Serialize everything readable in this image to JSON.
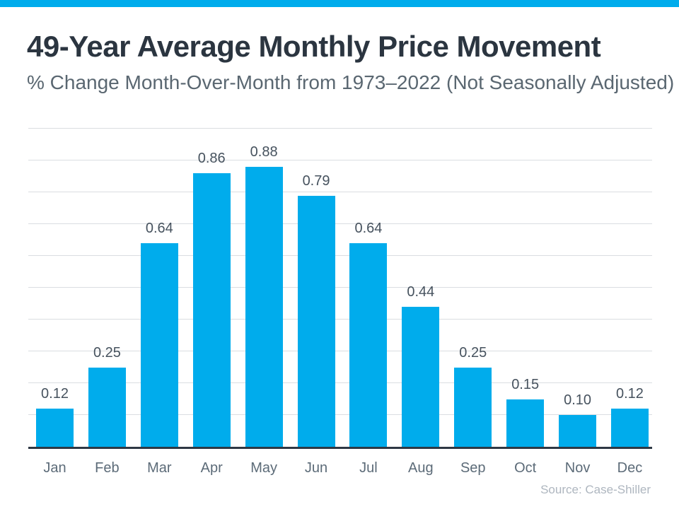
{
  "page": {
    "title": "49-Year Average Monthly Price Movement",
    "subtitle": "% Change Month-Over-Month from 1973–2022 (Not Seasonally Adjusted)",
    "source": "Source: Case-Shiller"
  },
  "colors": {
    "accent": "#00ACEC",
    "title": "#2B3540",
    "subtitle": "#5A6771",
    "data_label": "#46525E",
    "month_label": "#5C6B78",
    "gridline": "#DADDE1",
    "axis": "#2E3844",
    "source": "#AEB6BF"
  },
  "chart_data": {
    "type": "bar",
    "title": "49-Year Average Monthly Price Movement",
    "subtitle": "% Change Month-Over-Month from 1973–2022 (Not Seasonally Adjusted)",
    "categories": [
      "Jan",
      "Feb",
      "Mar",
      "Apr",
      "May",
      "Jun",
      "Jul",
      "Aug",
      "Sep",
      "Oct",
      "Nov",
      "Dec"
    ],
    "values": [
      0.12,
      0.25,
      0.64,
      0.86,
      0.88,
      0.79,
      0.64,
      0.44,
      0.25,
      0.15,
      0.1,
      0.12
    ],
    "value_labels": [
      "0.12",
      "0.25",
      "0.64",
      "0.86",
      "0.88",
      "0.79",
      "0.64",
      "0.44",
      "0.25",
      "0.15",
      "0.10",
      "0.12"
    ],
    "xlabel": "",
    "ylabel": "% change month-over-month",
    "ylim": [
      0,
      1.0
    ],
    "gridline_step": 0.1,
    "grid": true,
    "legend": false,
    "bar_color": "#00ACEC",
    "annotations": [
      "Source: Case-Shiller"
    ]
  }
}
